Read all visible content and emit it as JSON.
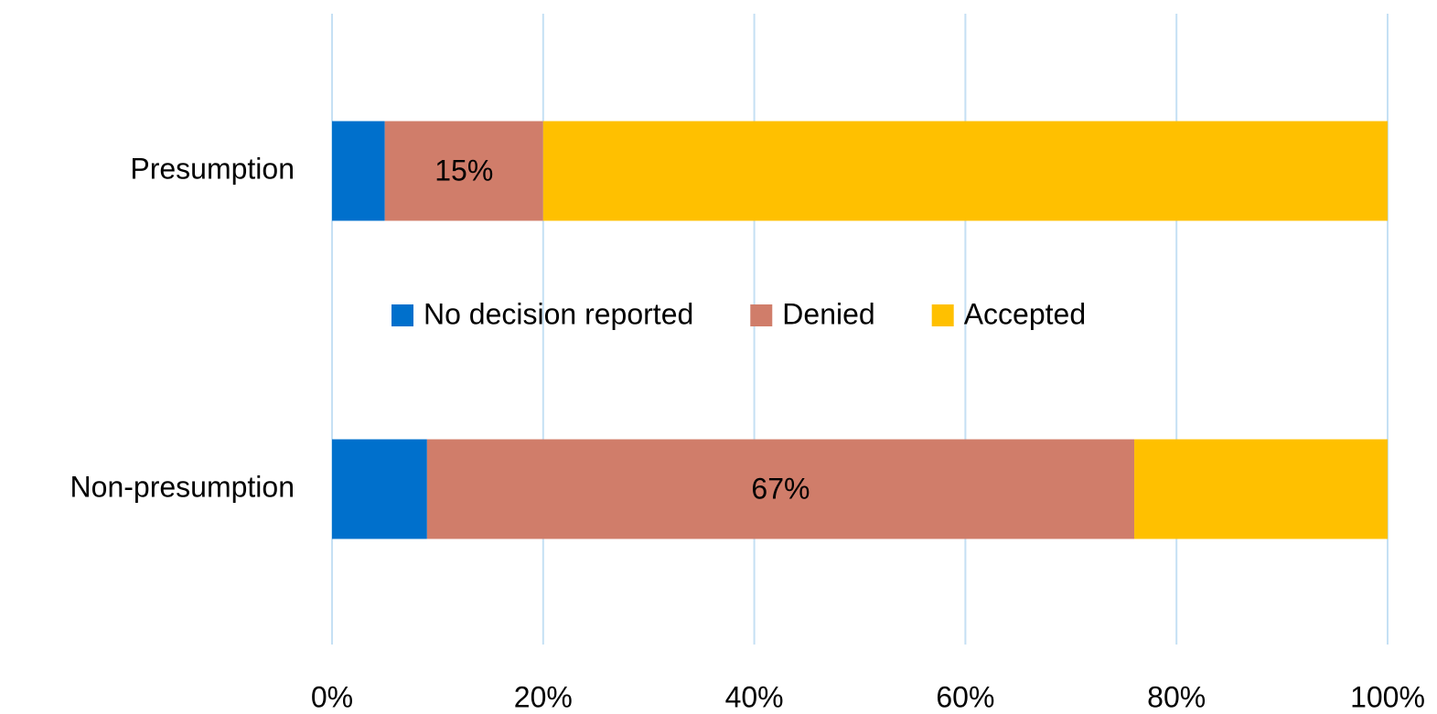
{
  "chart_data": {
    "type": "stacked-bar-horizontal",
    "categories": [
      "Presumption",
      "Non-presumption"
    ],
    "series": [
      {
        "name": "No decision reported",
        "color": "#0070cc",
        "values": [
          5,
          9
        ]
      },
      {
        "name": "Denied",
        "color": "#d07d6a",
        "values": [
          15,
          67
        ],
        "value_labels": [
          "15%",
          "67%"
        ]
      },
      {
        "name": "Accepted",
        "color": "#ffc000",
        "values": [
          80,
          24
        ]
      }
    ],
    "xlim": [
      0,
      100
    ],
    "xticks": [
      {
        "value": 0,
        "label": "0%"
      },
      {
        "value": 20,
        "label": "20%"
      },
      {
        "value": 40,
        "label": "40%"
      },
      {
        "value": 60,
        "label": "60%"
      },
      {
        "value": 80,
        "label": "80%"
      },
      {
        "value": 100,
        "label": "100%"
      }
    ],
    "grid": true,
    "legend": "center"
  }
}
